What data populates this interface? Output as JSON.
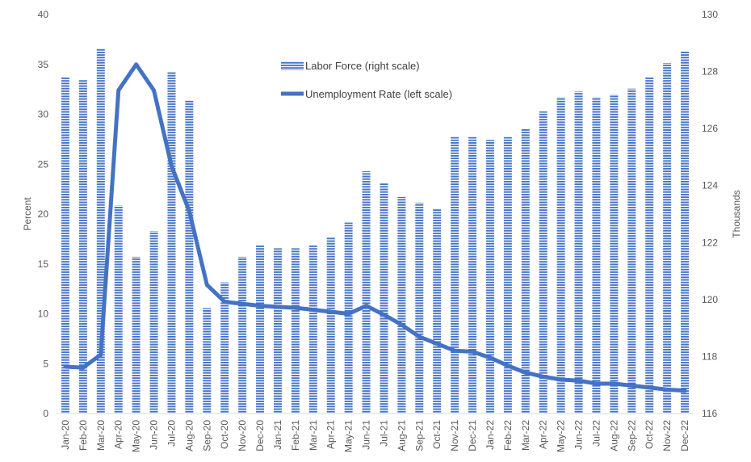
{
  "chart_data": {
    "type": "bar",
    "categories": [
      "Jan-20",
      "Feb-20",
      "Mar-20",
      "Apr-20",
      "May-20",
      "Jun-20",
      "Jul-20",
      "Aug-20",
      "Sep-20",
      "Oct-20",
      "Nov-20",
      "Dec-20",
      "Jan-21",
      "Feb-21",
      "Mar-21",
      "Apr-21",
      "May-21",
      "Jun-21",
      "Jul-21",
      "Aug-21",
      "Sep-21",
      "Oct-21",
      "Nov-21",
      "Dec-21",
      "Jan-22",
      "Feb-22",
      "Mar-22",
      "Apr-22",
      "May-22",
      "Jun-22",
      "Jul-22",
      "Aug-22",
      "Sep-22",
      "Oct-22",
      "Nov-22",
      "Dec-22"
    ],
    "series": [
      {
        "name": "Labor Force (right scale)",
        "kind": "bar",
        "axis": "right",
        "color": "#4472c4",
        "values": [
          127.8,
          127.7,
          128.8,
          123.3,
          121.5,
          122.4,
          128.0,
          127.0,
          119.7,
          120.6,
          121.5,
          121.9,
          121.8,
          121.8,
          121.9,
          122.2,
          122.7,
          124.5,
          124.1,
          123.6,
          123.4,
          123.2,
          125.7,
          125.7,
          125.6,
          125.7,
          126.0,
          126.6,
          127.1,
          127.3,
          127.1,
          127.2,
          127.4,
          127.8,
          128.3,
          128.7
        ]
      },
      {
        "name": "Unemployment Rate (left scale)",
        "kind": "line",
        "axis": "left",
        "color": "#4472c4",
        "values": [
          4.7,
          4.6,
          5.9,
          32.4,
          35.0,
          32.4,
          24.8,
          20.3,
          12.9,
          11.2,
          11.0,
          10.8,
          10.7,
          10.6,
          10.4,
          10.2,
          10.0,
          10.8,
          9.9,
          8.9,
          7.7,
          7.0,
          6.3,
          6.2,
          5.6,
          4.8,
          4.1,
          3.7,
          3.4,
          3.3,
          3.0,
          3.0,
          2.8,
          2.6,
          2.4,
          2.3
        ]
      }
    ],
    "y_left": {
      "label": "Percent",
      "ylim": [
        0,
        40
      ],
      "ticks": [
        0,
        5,
        10,
        15,
        20,
        25,
        30,
        35,
        40
      ]
    },
    "y_right": {
      "label": "Thousands",
      "ylim": [
        116,
        130
      ],
      "ticks": [
        116,
        118,
        120,
        122,
        124,
        126,
        128,
        130
      ]
    },
    "grid": false,
    "legend": "top-center"
  }
}
